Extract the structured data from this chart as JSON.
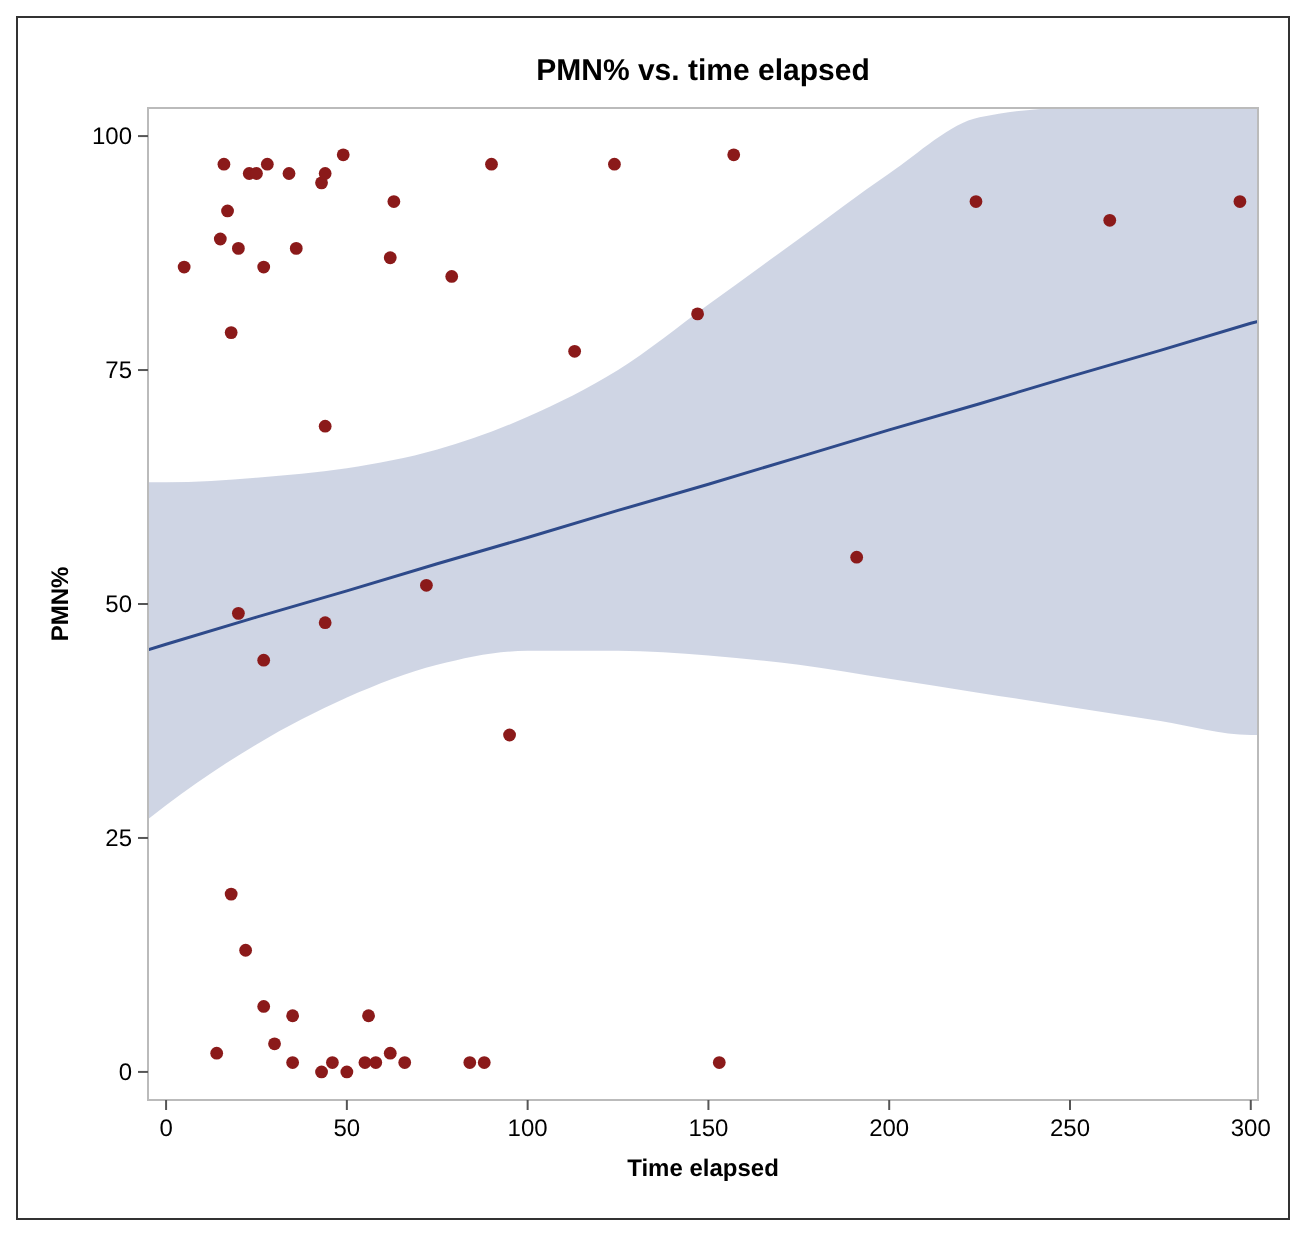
{
  "chart_data": {
    "type": "scatter",
    "title": "PMN% vs. time elapsed",
    "xlabel": "Time elapsed",
    "ylabel": "PMN%",
    "xlim": [
      -5,
      302
    ],
    "ylim": [
      -3,
      103
    ],
    "xticks": [
      0,
      50,
      100,
      150,
      200,
      250,
      300
    ],
    "yticks": [
      0,
      25,
      50,
      75,
      100
    ],
    "grid": false,
    "series": [
      {
        "marker": "circle",
        "color": "#8b1a1a",
        "x": [
          5,
          15,
          16,
          17,
          18,
          20,
          23,
          25,
          27,
          28,
          34,
          36,
          43,
          44,
          44,
          49,
          62,
          63,
          79,
          90,
          113,
          124,
          147,
          157,
          224,
          261,
          297,
          20,
          27,
          44,
          72,
          95,
          191,
          14,
          18,
          22,
          27,
          30,
          35,
          35,
          43,
          46,
          50,
          56,
          55,
          58,
          62,
          66,
          84,
          88,
          153
        ],
        "values": [
          86,
          89,
          97,
          92,
          79,
          88,
          96,
          96,
          86,
          97,
          96,
          88,
          95,
          96,
          69,
          98,
          87,
          93,
          85,
          97,
          77,
          97,
          81,
          98,
          93,
          91,
          93,
          49,
          44,
          48,
          52,
          36,
          55,
          2,
          19,
          13,
          7,
          3,
          6,
          1,
          0,
          1,
          0,
          6,
          1,
          1,
          2,
          1,
          1,
          1,
          1
        ]
      },
      {
        "type": "line",
        "color": "#2e4a8a",
        "x": [
          -5,
          0,
          25,
          50,
          75,
          100,
          125,
          150,
          175,
          200,
          225,
          250,
          275,
          300,
          302
        ],
        "values": [
          45.1,
          45.7,
          48.6,
          51.4,
          54.3,
          57.1,
          60.0,
          62.8,
          65.7,
          68.6,
          71.4,
          74.3,
          77.1,
          80.0,
          80.2
        ],
        "lower": [
          27,
          28.5,
          35,
          40,
          43.5,
          45,
          45,
          44.5,
          43.5,
          42,
          40.5,
          39,
          37.5,
          36,
          36
        ],
        "upper": [
          63,
          63,
          63.5,
          64.5,
          66.5,
          70,
          75,
          82,
          89,
          96,
          102,
          103,
          103,
          103,
          103
        ]
      }
    ]
  }
}
